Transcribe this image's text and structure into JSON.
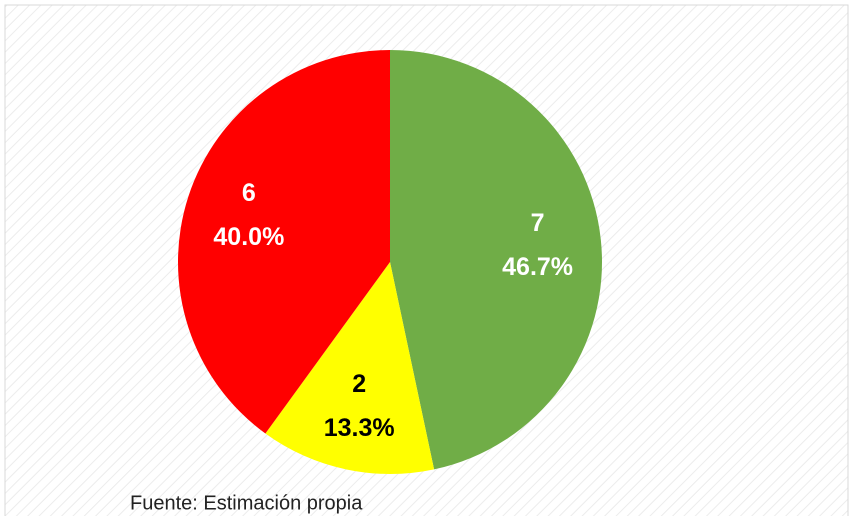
{
  "chart_data": {
    "type": "pie",
    "values": [
      7,
      2,
      6
    ],
    "percent_labels": [
      "46.7%",
      "13.3%",
      "40.0%"
    ],
    "colors": [
      "#70ad47",
      "#ffff00",
      "#ff0000"
    ],
    "label_colors": [
      "#ffffff",
      "#000000",
      "#ffffff"
    ],
    "note": "Fuente: Estimación propia"
  }
}
